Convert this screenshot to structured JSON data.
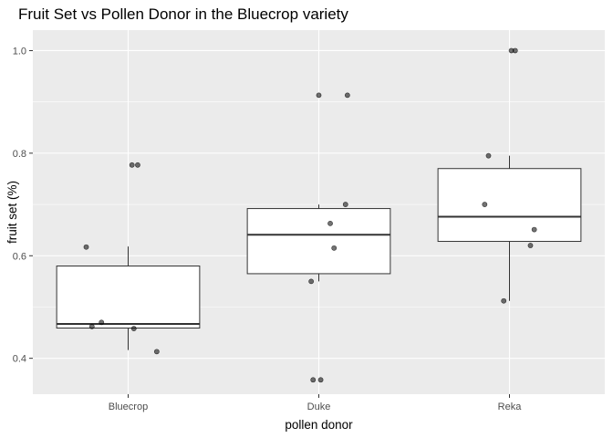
{
  "chart_data": {
    "type": "boxplot",
    "title": "Fruit Set vs Pollen Donor in the Bluecrop variety",
    "xlabel": "pollen donor",
    "ylabel": "fruit set (%)",
    "categories": [
      "Bluecrop",
      "Duke",
      "Reka"
    ],
    "ylim": [
      0.33,
      1.04
    ],
    "yticks": [
      0.4,
      0.6,
      0.8,
      1.0
    ],
    "ytick_labels": [
      "0.4",
      "0.6",
      "0.8",
      "1.0"
    ],
    "grid": true,
    "boxes": [
      {
        "category": "Bluecrop",
        "min": 0.416,
        "q1": 0.459,
        "median": 0.467,
        "q3": 0.58,
        "max": 0.618
      },
      {
        "category": "Duke",
        "min": 0.55,
        "q1": 0.565,
        "median": 0.641,
        "q3": 0.692,
        "max": 0.7
      },
      {
        "category": "Reka",
        "min": 0.512,
        "q1": 0.628,
        "median": 0.676,
        "q3": 0.77,
        "max": 0.795
      }
    ],
    "points": [
      {
        "category": "Bluecrop",
        "jitter": 0.02,
        "y": 0.777
      },
      {
        "category": "Bluecrop",
        "jitter": 0.05,
        "y": 0.777
      },
      {
        "category": "Bluecrop",
        "jitter": -0.22,
        "y": 0.617
      },
      {
        "category": "Bluecrop",
        "jitter": -0.14,
        "y": 0.47
      },
      {
        "category": "Bluecrop",
        "jitter": -0.19,
        "y": 0.462
      },
      {
        "category": "Bluecrop",
        "jitter": 0.03,
        "y": 0.458
      },
      {
        "category": "Bluecrop",
        "jitter": 0.15,
        "y": 0.413
      },
      {
        "category": "Duke",
        "jitter": 0.0,
        "y": 0.913
      },
      {
        "category": "Duke",
        "jitter": 0.15,
        "y": 0.913
      },
      {
        "category": "Duke",
        "jitter": 0.14,
        "y": 0.7
      },
      {
        "category": "Duke",
        "jitter": 0.06,
        "y": 0.663
      },
      {
        "category": "Duke",
        "jitter": 0.08,
        "y": 0.615
      },
      {
        "category": "Duke",
        "jitter": -0.04,
        "y": 0.55
      },
      {
        "category": "Duke",
        "jitter": -0.03,
        "y": 0.358
      },
      {
        "category": "Duke",
        "jitter": 0.01,
        "y": 0.358
      },
      {
        "category": "Reka",
        "jitter": 0.01,
        "y": 1.0
      },
      {
        "category": "Reka",
        "jitter": 0.03,
        "y": 1.0
      },
      {
        "category": "Reka",
        "jitter": -0.11,
        "y": 0.795
      },
      {
        "category": "Reka",
        "jitter": -0.13,
        "y": 0.7
      },
      {
        "category": "Reka",
        "jitter": 0.13,
        "y": 0.651
      },
      {
        "category": "Reka",
        "jitter": 0.11,
        "y": 0.62
      },
      {
        "category": "Reka",
        "jitter": -0.03,
        "y": 0.512
      }
    ],
    "colors": {
      "panel": "#ebebeb",
      "grid_major": "#ffffff",
      "box_fill": "#ffffff",
      "box_line": "#333333",
      "point": "#000000"
    }
  }
}
